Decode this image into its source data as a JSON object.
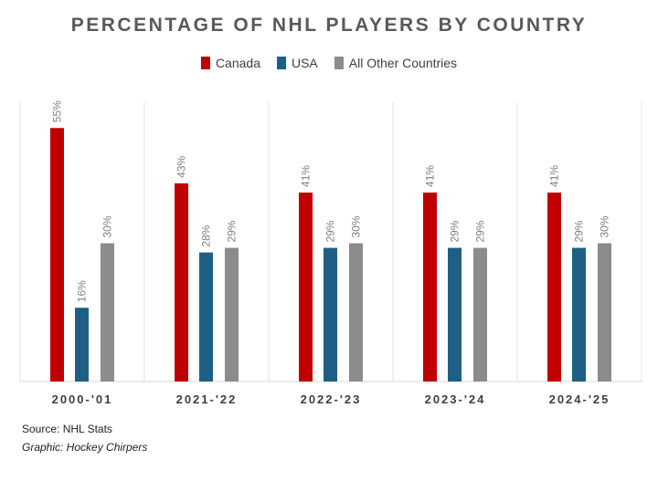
{
  "chart_data": {
    "type": "bar",
    "title": "PERCENTAGE OF NHL PLAYERS BY COUNTRY",
    "categories": [
      "2000-'01",
      "2021-'22",
      "2022-'23",
      "2023-'24",
      "2024-'25"
    ],
    "series": [
      {
        "name": "Canada",
        "color": "#c00000",
        "values": [
          55,
          43,
          41,
          41,
          41
        ]
      },
      {
        "name": "USA",
        "color": "#1f5f85",
        "values": [
          16,
          28,
          29,
          29,
          29
        ]
      },
      {
        "name": "All Other Countries",
        "color": "#8c8c8c",
        "values": [
          30,
          29,
          30,
          29,
          30
        ]
      }
    ],
    "value_suffix": "%",
    "ylim": [
      0,
      60
    ],
    "legend": "top",
    "grid": false,
    "panel_separators": true
  },
  "footer": {
    "source": "Source: NHL Stats",
    "credit": "Graphic: Hockey Chirpers"
  }
}
